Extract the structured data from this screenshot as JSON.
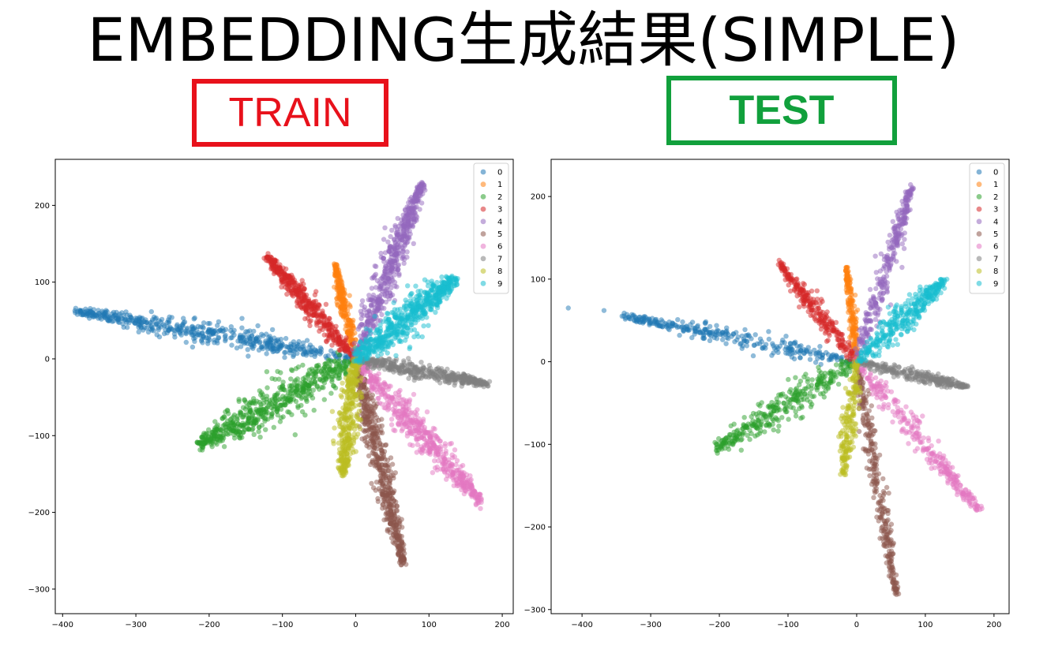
{
  "title": "EMBEDDING生成結果(SIMPLE)",
  "labels": {
    "train": "TRAIN",
    "test": "TEST",
    "train_color": "#e8111b",
    "test_color": "#11a03c"
  },
  "chart_data": [
    {
      "type": "scatter",
      "name": "train",
      "title": "",
      "xlabel": "",
      "ylabel": "",
      "xlim": [
        -410,
        215
      ],
      "ylim": [
        -332,
        260
      ],
      "xticks": [
        -400,
        -300,
        -200,
        -100,
        0,
        100,
        200
      ],
      "yticks": [
        -300,
        -200,
        -100,
        0,
        100,
        200
      ],
      "legend": "top-right",
      "series": [
        {
          "name": "0",
          "color": "#1f77b4",
          "start": [
            0,
            0
          ],
          "end": [
            -380,
            62
          ],
          "width": 13,
          "n": 520
        },
        {
          "name": "1",
          "color": "#ff7f0e",
          "start": [
            0,
            0
          ],
          "end": [
            -28,
            122
          ],
          "width": 7,
          "n": 260
        },
        {
          "name": "2",
          "color": "#2ca02c",
          "start": [
            0,
            0
          ],
          "end": [
            -215,
            -112
          ],
          "width": 24,
          "n": 600
        },
        {
          "name": "3",
          "color": "#d62728",
          "start": [
            0,
            0
          ],
          "end": [
            -120,
            132
          ],
          "width": 12,
          "n": 440
        },
        {
          "name": "4",
          "color": "#9467bd",
          "start": [
            0,
            0
          ],
          "end": [
            90,
            228
          ],
          "width": 15,
          "n": 560
        },
        {
          "name": "5",
          "color": "#8c564b",
          "start": [
            0,
            0
          ],
          "end": [
            65,
            -268
          ],
          "width": 13,
          "n": 560
        },
        {
          "name": "6",
          "color": "#e377c2",
          "start": [
            0,
            0
          ],
          "end": [
            172,
            -188
          ],
          "width": 17,
          "n": 560
        },
        {
          "name": "7",
          "color": "#7f7f7f",
          "start": [
            0,
            0
          ],
          "end": [
            178,
            -32
          ],
          "width": 9,
          "n": 420
        },
        {
          "name": "8",
          "color": "#bcbd22",
          "start": [
            0,
            0
          ],
          "end": [
            -18,
            -150
          ],
          "width": 15,
          "n": 360
        },
        {
          "name": "9",
          "color": "#17becf",
          "start": [
            0,
            0
          ],
          "end": [
            135,
            105
          ],
          "width": 22,
          "n": 600
        }
      ]
    },
    {
      "type": "scatter",
      "name": "test",
      "title": "",
      "xlabel": "",
      "ylabel": "",
      "xlim": [
        -445,
        222
      ],
      "ylim": [
        -305,
        245
      ],
      "xticks": [
        -400,
        -300,
        -200,
        -100,
        0,
        100,
        200
      ],
      "yticks": [
        -300,
        -200,
        -100,
        0,
        100,
        200
      ],
      "legend": "top-right",
      "series": [
        {
          "name": "0",
          "color": "#1f77b4",
          "start": [
            0,
            0
          ],
          "end": [
            -340,
            55
          ],
          "width": 10,
          "n": 300
        },
        {
          "name": "1",
          "color": "#ff7f0e",
          "start": [
            0,
            0
          ],
          "end": [
            -15,
            115
          ],
          "width": 6,
          "n": 180
        },
        {
          "name": "2",
          "color": "#2ca02c",
          "start": [
            0,
            0
          ],
          "end": [
            -205,
            -105
          ],
          "width": 18,
          "n": 340
        },
        {
          "name": "3",
          "color": "#d62728",
          "start": [
            0,
            0
          ],
          "end": [
            -112,
            118
          ],
          "width": 11,
          "n": 260
        },
        {
          "name": "4",
          "color": "#9467bd",
          "start": [
            0,
            0
          ],
          "end": [
            80,
            212
          ],
          "width": 12,
          "n": 300
        },
        {
          "name": "5",
          "color": "#8c564b",
          "start": [
            0,
            0
          ],
          "end": [
            58,
            -282
          ],
          "width": 10,
          "n": 300
        },
        {
          "name": "6",
          "color": "#e377c2",
          "start": [
            0,
            0
          ],
          "end": [
            178,
            -180
          ],
          "width": 13,
          "n": 300
        },
        {
          "name": "7",
          "color": "#7f7f7f",
          "start": [
            0,
            0
          ],
          "end": [
            158,
            -30
          ],
          "width": 8,
          "n": 260
        },
        {
          "name": "8",
          "color": "#bcbd22",
          "start": [
            0,
            0
          ],
          "end": [
            -20,
            -135
          ],
          "width": 12,
          "n": 200
        },
        {
          "name": "9",
          "color": "#17becf",
          "start": [
            0,
            0
          ],
          "end": [
            128,
            98
          ],
          "width": 16,
          "n": 340
        }
      ],
      "outliers": [
        {
          "series": "0",
          "x": -420,
          "y": 65
        },
        {
          "series": "0",
          "x": -368,
          "y": 62
        }
      ]
    }
  ]
}
